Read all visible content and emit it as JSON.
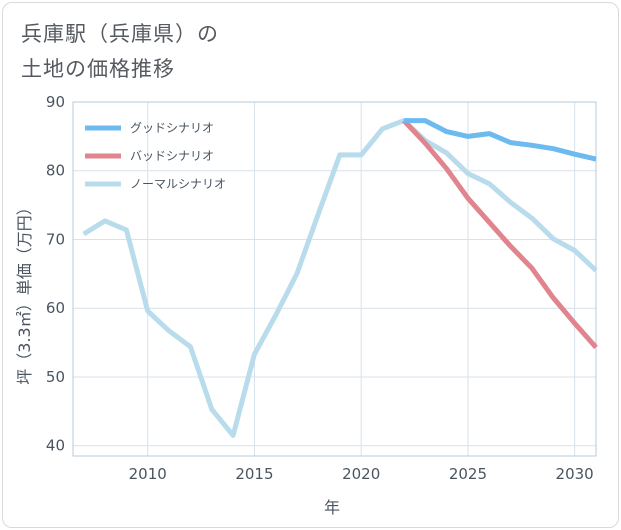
{
  "page": {
    "title_line1": "兵庫駅（兵庫県）の",
    "title_line2": "土地の価格推移"
  },
  "chart_data": {
    "type": "line",
    "title": "兵庫駅（兵庫県）の土地の価格推移",
    "xlabel": "年",
    "ylabel": "坪（3.3㎡）単価（万円）",
    "xlim": [
      2006.5,
      2031
    ],
    "ylim": [
      38.5,
      90
    ],
    "xticks": [
      2010,
      2015,
      2020,
      2025,
      2030
    ],
    "xtick_labels": [
      "2010",
      "2015",
      "2020",
      "2025",
      "2030"
    ],
    "yticks": [
      40,
      50,
      60,
      70,
      80,
      90
    ],
    "ytick_labels": [
      "40",
      "50",
      "60",
      "70",
      "80",
      "90"
    ],
    "legend_position": "top-left",
    "series": [
      {
        "name": "グッドシナリオ",
        "color": "#6cbaf0",
        "x": [
          2022,
          2023,
          2024,
          2025,
          2026,
          2027,
          2028,
          2029,
          2030,
          2031
        ],
        "y": [
          87.3,
          87.3,
          85.7,
          85.0,
          85.4,
          84.1,
          83.7,
          83.2,
          82.4,
          81.7
        ]
      },
      {
        "name": "バッドシナリオ",
        "color": "#e0848e",
        "x": [
          2022,
          2023,
          2024,
          2025,
          2026,
          2027,
          2028,
          2029,
          2030,
          2031
        ],
        "y": [
          87.3,
          84.0,
          80.3,
          76.0,
          72.5,
          69.0,
          65.8,
          61.5,
          57.8,
          54.3
        ]
      },
      {
        "name": "ノーマルシナリオ",
        "color": "#b9dcec",
        "x": [
          2007,
          2008,
          2009,
          2010,
          2011,
          2012,
          2013,
          2014,
          2015,
          2016,
          2017,
          2018,
          2019,
          2020,
          2021,
          2022,
          2023,
          2024,
          2025,
          2026,
          2027,
          2028,
          2029,
          2030,
          2031
        ],
        "y": [
          70.8,
          72.7,
          71.4,
          59.6,
          56.7,
          54.4,
          45.3,
          41.5,
          53.3,
          59.0,
          65.1,
          73.8,
          82.3,
          82.3,
          86.1,
          87.3,
          84.4,
          82.6,
          79.6,
          78.1,
          75.4,
          73.1,
          70.1,
          68.4,
          65.5
        ]
      }
    ]
  }
}
